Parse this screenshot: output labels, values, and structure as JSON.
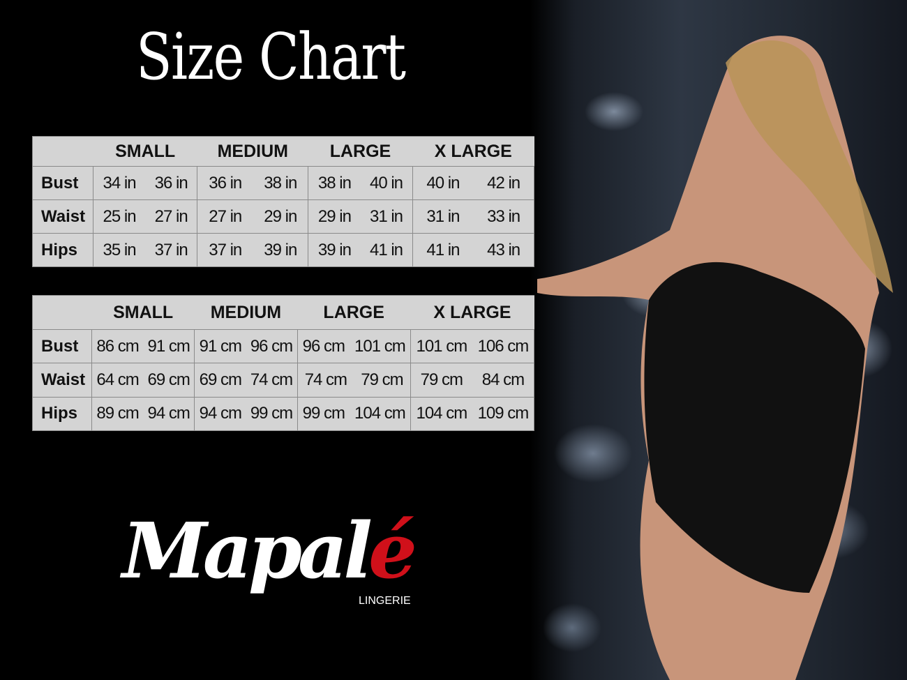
{
  "title": "Size Chart",
  "sizes": [
    "SMALL",
    "MEDIUM",
    "LARGE",
    "X LARGE"
  ],
  "tables": [
    {
      "rows": [
        {
          "label": "Bust",
          "values": [
            [
              "34 in",
              "36 in"
            ],
            [
              "36 in",
              "38 in"
            ],
            [
              "38 in",
              "40 in"
            ],
            [
              "40 in",
              "42 in"
            ]
          ]
        },
        {
          "label": "Waist",
          "values": [
            [
              "25 in",
              "27 in"
            ],
            [
              "27 in",
              "29 in"
            ],
            [
              "29 in",
              "31 in"
            ],
            [
              "31 in",
              "33 in"
            ]
          ]
        },
        {
          "label": "Hips",
          "values": [
            [
              "35 in",
              "37 in"
            ],
            [
              "37 in",
              "39 in"
            ],
            [
              "39 in",
              "41 in"
            ],
            [
              "41 in",
              "43 in"
            ]
          ]
        }
      ]
    },
    {
      "rows": [
        {
          "label": "Bust",
          "values": [
            [
              "86 cm",
              "91 cm"
            ],
            [
              "91 cm",
              "96 cm"
            ],
            [
              "96 cm",
              "101 cm"
            ],
            [
              "101 cm",
              "106 cm"
            ]
          ]
        },
        {
          "label": "Waist",
          "values": [
            [
              "64 cm",
              "69 cm"
            ],
            [
              "69 cm",
              "74 cm"
            ],
            [
              "74 cm",
              "79 cm"
            ],
            [
              "79 cm",
              "84 cm"
            ]
          ]
        },
        {
          "label": "Hips",
          "values": [
            [
              "89 cm",
              "94 cm"
            ],
            [
              "94 cm",
              "99 cm"
            ],
            [
              "99 cm",
              "104 cm"
            ],
            [
              "104 cm",
              "109 cm"
            ]
          ]
        }
      ]
    }
  ],
  "brand": {
    "name": "Mapalé",
    "name_main": "Mapal",
    "name_accent": "é",
    "tagline": "LINGERIE",
    "accent_color": "#d0101a"
  },
  "colors": {
    "background": "#000000",
    "table_bg": "#d4d4d4"
  }
}
